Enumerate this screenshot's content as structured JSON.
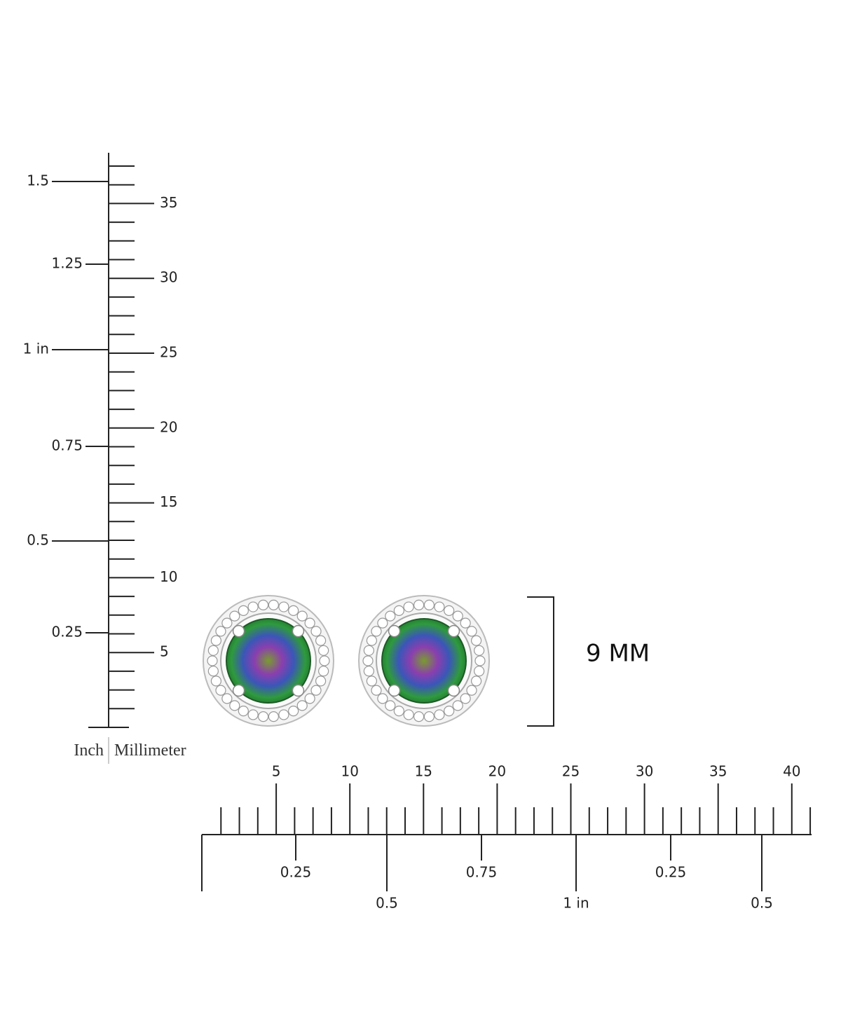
{
  "vertical_ruler": {
    "inch_labels": [
      "1.5",
      "1.25",
      "1 in",
      "0.75",
      "0.5",
      "0.25"
    ],
    "mm_labels": [
      "35",
      "30",
      "25",
      "20",
      "15",
      "10",
      "5"
    ],
    "unit_labels": [
      "Inch",
      "Millimeter"
    ]
  },
  "horizontal_ruler": {
    "mm_labels": [
      "5",
      "10",
      "15",
      "20",
      "25",
      "30",
      "35",
      "40"
    ],
    "inch_labels": [
      "0.25",
      "0.5",
      "0.75",
      "1 in",
      "0.25",
      "0.5"
    ]
  },
  "dimension": "9 MM"
}
